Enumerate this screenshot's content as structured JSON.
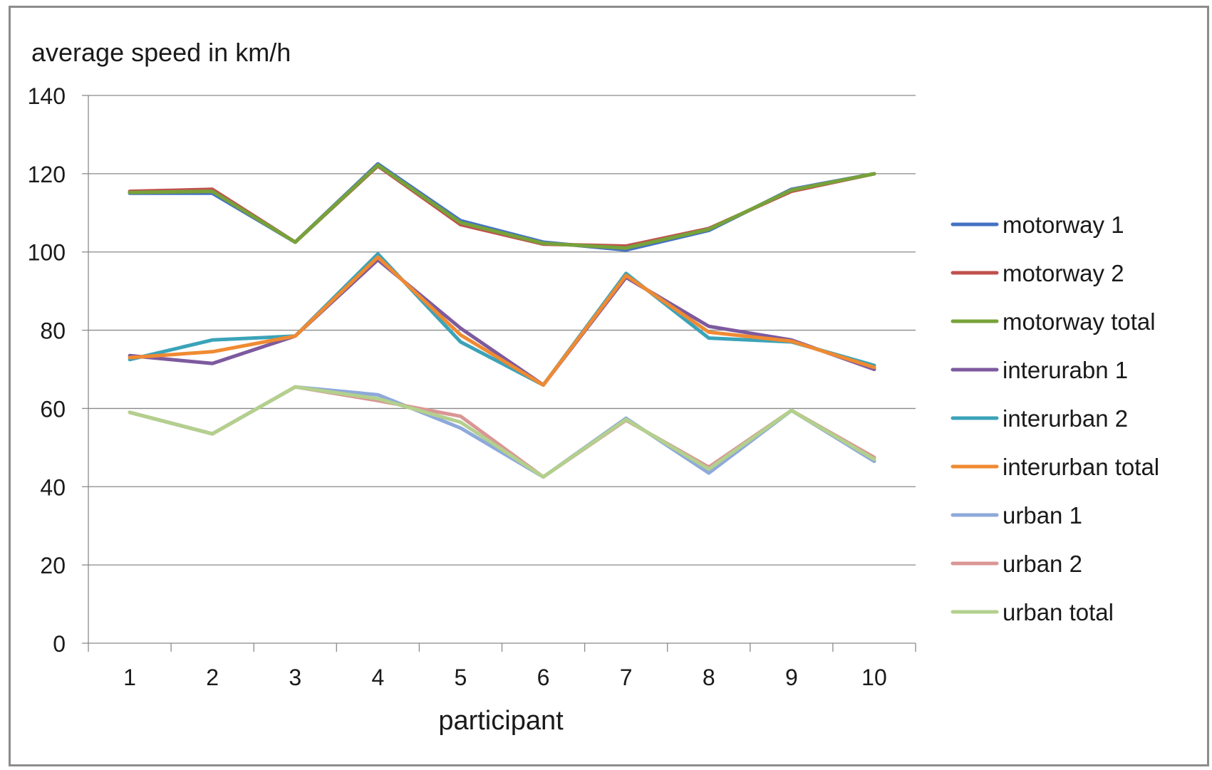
{
  "chart_data": {
    "type": "line",
    "title": "",
    "ylabel": "average speed in km/h",
    "xlabel": "participant",
    "categories": [
      "1",
      "2",
      "3",
      "4",
      "5",
      "6",
      "7",
      "8",
      "9",
      "10"
    ],
    "ylim": [
      0,
      140
    ],
    "yticks": [
      0,
      20,
      40,
      60,
      80,
      100,
      120,
      140
    ],
    "grid": true,
    "legend_position": "right",
    "series": [
      {
        "name": "motorway 1",
        "color": "#4472C4",
        "values": [
          115,
          115,
          102.5,
          122.5,
          108,
          102.5,
          100.5,
          105.5,
          116,
          120
        ]
      },
      {
        "name": "motorway 2",
        "color": "#C0504D",
        "values": [
          115.5,
          116,
          102.5,
          122,
          107,
          102,
          101.5,
          106,
          115.5,
          120
        ]
      },
      {
        "name": "motorway total",
        "color": "#77A23A",
        "values": [
          115.2,
          115.5,
          102.5,
          122.2,
          107.5,
          102.2,
          101,
          105.8,
          115.8,
          120
        ]
      },
      {
        "name": "interurabn 1",
        "color": "#7D5A9E",
        "values": [
          73.5,
          71.5,
          78.5,
          98,
          80.5,
          66,
          93.5,
          81,
          77.5,
          70
        ]
      },
      {
        "name": "interurban 2",
        "color": "#3BA3B8",
        "values": [
          72.5,
          77.5,
          78.5,
          99.5,
          77,
          66,
          94.5,
          78,
          77,
          71
        ]
      },
      {
        "name": "interurban total",
        "color": "#F08A32",
        "values": [
          73,
          74.5,
          78.5,
          98.7,
          78.8,
          66,
          94,
          79.5,
          77.2,
          70.5
        ]
      },
      {
        "name": "urban 1",
        "color": "#8EA9DB",
        "values": [
          59,
          53.5,
          65.5,
          63.5,
          55,
          42.5,
          57.5,
          43.5,
          59.5,
          46.5
        ]
      },
      {
        "name": "urban 2",
        "color": "#DA9694",
        "values": [
          59,
          53.5,
          65.5,
          62,
          58,
          42.5,
          57,
          45,
          59.5,
          47.5
        ]
      },
      {
        "name": "urban total",
        "color": "#B3D08D",
        "values": [
          59,
          53.5,
          65.5,
          62.5,
          56.5,
          42.5,
          57.2,
          44.5,
          59.5,
          47
        ]
      }
    ]
  }
}
